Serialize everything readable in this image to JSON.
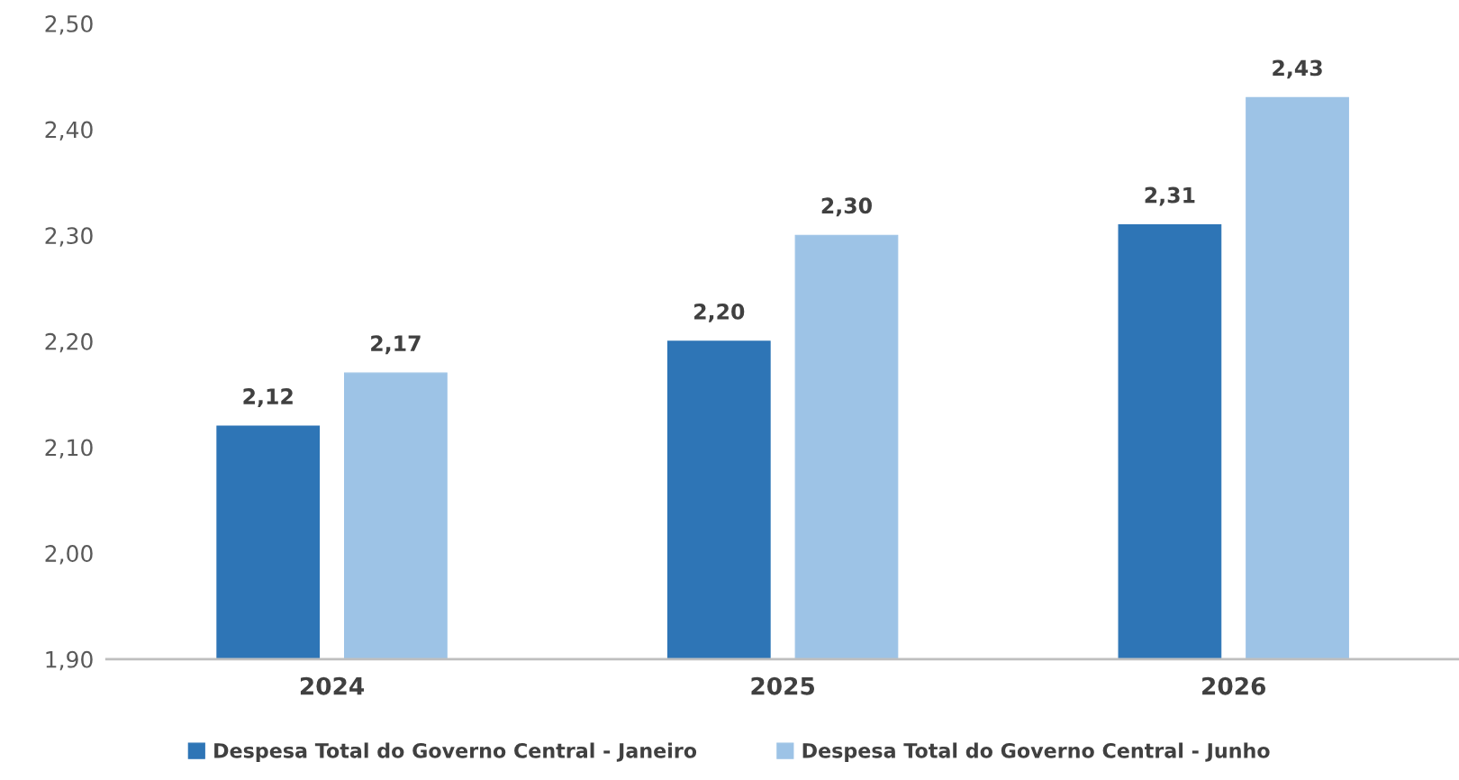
{
  "chart_data": {
    "type": "bar",
    "categories": [
      "2024",
      "2025",
      "2026"
    ],
    "series": [
      {
        "name": "Despesa Total do Governo Central - Janeiro",
        "color": "#2e75b6",
        "values": [
          2.12,
          2.2,
          2.31
        ],
        "value_labels": [
          "2,12",
          "2,20",
          "2,31"
        ]
      },
      {
        "name": "Despesa Total do Governo Central - Junho",
        "color": "#9dc3e6",
        "values": [
          2.17,
          2.3,
          2.43
        ],
        "value_labels": [
          "2,17",
          "2,30",
          "2,43"
        ]
      }
    ],
    "ylim": [
      1.9,
      2.5
    ],
    "yticks": [
      {
        "value": 1.9,
        "label": "1,90"
      },
      {
        "value": 2.0,
        "label": "2,00"
      },
      {
        "value": 2.1,
        "label": "2,10"
      },
      {
        "value": 2.2,
        "label": "2,20"
      },
      {
        "value": 2.3,
        "label": "2,30"
      },
      {
        "value": 2.4,
        "label": "2,40"
      },
      {
        "value": 2.5,
        "label": "2,50"
      }
    ],
    "grid": false,
    "legend": "bottom"
  }
}
